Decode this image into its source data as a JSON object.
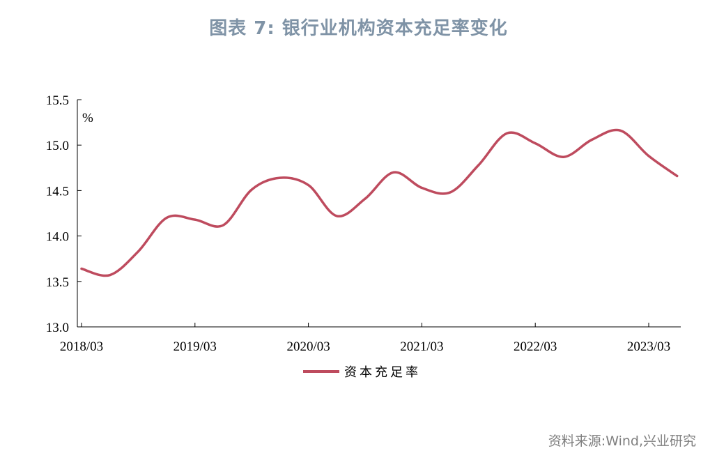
{
  "title": "图表 7:  银行业机构资本充足率变化",
  "source": "资料来源:Wind,兴业研究",
  "colors": {
    "line": "#be4b5e",
    "title": "#7f93a6",
    "axis": "#000000",
    "source": "#7f7f7f"
  },
  "chart_data": {
    "type": "line",
    "title": "图表 7:  银行业机构资本充足率变化",
    "ylabel": "%",
    "xlabel": "",
    "ylim": [
      13.0,
      15.5
    ],
    "yticks": [
      13.0,
      13.5,
      14.0,
      14.5,
      15.0,
      15.5
    ],
    "ytick_labels": [
      "13.0",
      "13.5",
      "14.0",
      "14.5",
      "15.0",
      "15.5"
    ],
    "xticks": [
      "2018/03",
      "2019/03",
      "2020/03",
      "2021/03",
      "2022/03",
      "2023/03"
    ],
    "grid": false,
    "legend": "bottom-center",
    "x": [
      "2018/03",
      "2018/06",
      "2018/09",
      "2018/12",
      "2019/03",
      "2019/06",
      "2019/09",
      "2019/12",
      "2020/03",
      "2020/06",
      "2020/09",
      "2020/12",
      "2021/03",
      "2021/06",
      "2021/09",
      "2021/12",
      "2022/03",
      "2022/06",
      "2022/09",
      "2022/12",
      "2023/03",
      "2023/06"
    ],
    "series": [
      {
        "name": "资本充足率",
        "values": [
          13.64,
          13.57,
          13.83,
          14.2,
          14.18,
          14.12,
          14.51,
          14.64,
          14.56,
          14.22,
          14.41,
          14.7,
          14.53,
          14.48,
          14.78,
          15.13,
          15.02,
          14.87,
          15.06,
          15.16,
          14.88,
          14.66
        ]
      }
    ]
  }
}
